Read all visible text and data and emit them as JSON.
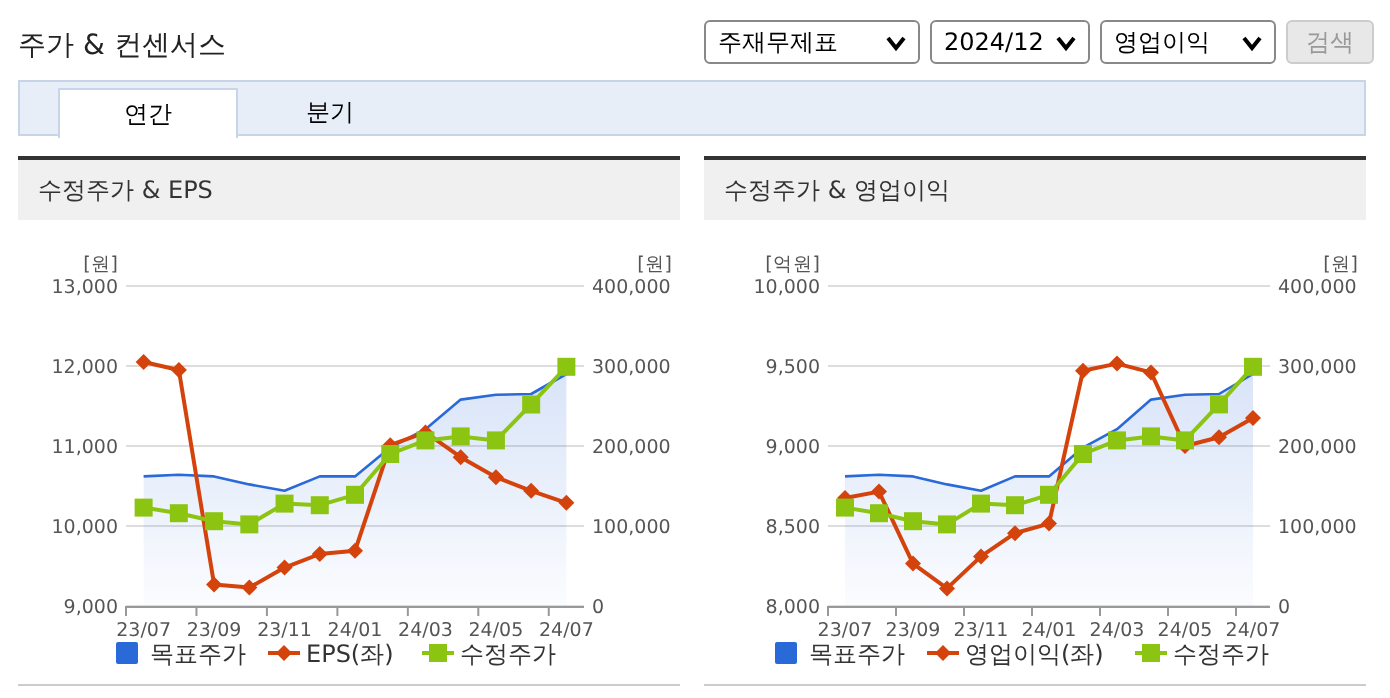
{
  "chart_data": [
    {
      "type": "other",
      "title": "주가 & 컨센서스",
      "annotations": [
        "주재무제표",
        "2024/12",
        "영업이익",
        "검색",
        "연간",
        "분기"
      ]
    },
    {
      "type": "line",
      "title": "수정주가 & EPS",
      "ylabel": "[원]",
      "y2label": "[원]",
      "categories": [
        "23/07",
        null,
        "23/09",
        null,
        "23/11",
        null,
        "24/01",
        null,
        "24/03",
        null,
        "24/05",
        null,
        "24/07"
      ],
      "ylim": [
        9000,
        13000
      ],
      "yticks": [
        {
          "value": 9000,
          "label": "9,000"
        },
        {
          "value": 10000,
          "label": "10,000"
        },
        {
          "value": 11000,
          "label": "11,000"
        },
        {
          "value": 12000,
          "label": "12,000"
        },
        {
          "value": 13000,
          "label": "13,000"
        }
      ],
      "y2lim": [
        0,
        400000
      ],
      "y2ticks": [
        0,
        {
          "value": 100000,
          "label": "100,000"
        },
        {
          "value": 200000,
          "label": "200,000"
        },
        {
          "value": 300000,
          "label": "300,000"
        },
        {
          "value": 400000,
          "label": "400,000"
        }
      ],
      "grid": "y",
      "legend": "bottom",
      "series": [
        {
          "name": "목표주가",
          "type": "area",
          "axis": "y2",
          "color": "#2a6ad8",
          "values": [
            162000,
            164000,
            162000,
            152000,
            144000,
            162000,
            162000,
            198000,
            221000,
            258000,
            264000,
            265000,
            290000
          ]
        },
        {
          "name": "EPS(좌)",
          "type": "line",
          "color": "#d4430c",
          "marker": "diamond",
          "values": [
            12050,
            11950,
            9270,
            9230,
            9480,
            9650,
            9690,
            11010,
            11170,
            10860,
            10610,
            10440,
            10290
          ]
        },
        {
          "name": "수정주가",
          "type": "line",
          "axis": "y2",
          "color": "#8cc412",
          "marker": "square",
          "values": [
            123000,
            116000,
            106000,
            102000,
            128000,
            126000,
            139000,
            190000,
            207000,
            212000,
            207000,
            252000,
            299000
          ]
        }
      ]
    },
    {
      "type": "line",
      "title": "수정주가 & 영업이익",
      "ylabel": "[억원]",
      "y2label": "[원]",
      "categories": [
        "23/07",
        null,
        "23/09",
        null,
        "23/11",
        null,
        "24/01",
        null,
        "24/03",
        null,
        "24/05",
        null,
        "24/07"
      ],
      "ylim": [
        8000,
        10000
      ],
      "yticks": [
        {
          "value": 8000,
          "label": "8,000"
        },
        {
          "value": 8500,
          "label": "8,500"
        },
        {
          "value": 9000,
          "label": "9,000"
        },
        {
          "value": 9500,
          "label": "9,500"
        },
        {
          "value": 10000,
          "label": "10,000"
        }
      ],
      "y2lim": [
        0,
        400000
      ],
      "y2ticks": [
        0,
        {
          "value": 100000,
          "label": "100,000"
        },
        {
          "value": 200000,
          "label": "200,000"
        },
        {
          "value": 300000,
          "label": "300,000"
        },
        {
          "value": 400000,
          "label": "400,000"
        }
      ],
      "grid": "y",
      "legend": "bottom",
      "series": [
        {
          "name": "목표주가",
          "type": "area",
          "axis": "y2",
          "color": "#2a6ad8",
          "values": [
            162000,
            164000,
            162000,
            152000,
            144000,
            162000,
            162000,
            198000,
            221000,
            258000,
            264000,
            265000,
            290000
          ]
        },
        {
          "name": "영업이익(좌)",
          "type": "line",
          "color": "#d4430c",
          "marker": "diamond",
          "values": [
            8675,
            8715,
            8265,
            8110,
            8310,
            8455,
            8515,
            9470,
            9515,
            9460,
            9000,
            9055,
            9175
          ]
        },
        {
          "name": "수정주가",
          "type": "line",
          "axis": "y2",
          "color": "#8cc412",
          "marker": "square",
          "values": [
            123000,
            116000,
            106000,
            102000,
            128000,
            126000,
            139000,
            190000,
            207000,
            212000,
            207000,
            252000,
            299000
          ]
        }
      ]
    }
  ]
}
